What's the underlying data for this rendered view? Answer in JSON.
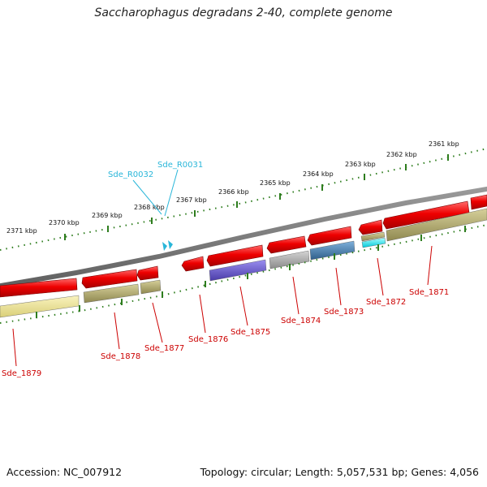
{
  "title": "Saccharophagus degradans 2-40, complete genome",
  "accession": "Accession: NC_007912",
  "summary": "Topology: circular; Length: 5,057,531 bp; Genes: 4,056",
  "scale_marks": [
    {
      "label": "2371 kbp"
    },
    {
      "label": "2370 kbp"
    },
    {
      "label": "2369 kbp"
    },
    {
      "label": "2368 kbp"
    },
    {
      "label": "2367 kbp"
    },
    {
      "label": "2366 kbp"
    },
    {
      "label": "2365 kbp"
    },
    {
      "label": "2364 kbp"
    },
    {
      "label": "2363 kbp"
    },
    {
      "label": "2362 kbp"
    },
    {
      "label": "2361 kbp"
    }
  ],
  "rna_genes": [
    "Sde_R0032",
    "Sde_R0031"
  ],
  "genes": [
    "Sde_1879",
    "Sde_1878",
    "Sde_1877",
    "Sde_1876",
    "Sde_1875",
    "Sde_1874",
    "Sde_1873",
    "Sde_1872",
    "Sde_1871"
  ],
  "colors": {
    "backbone": "#777777",
    "gene_arrow": "#ee0000",
    "rna_marker": "#29b6d9",
    "tick": "#2e7d1e",
    "cog_olive": "#b5ad6e",
    "cog_yellow": "#f0e68c",
    "cog_purple": "#6a5acd",
    "cog_gray": "#a9a9a9",
    "cog_steel": "#4682b4",
    "cog_cyan": "#00ffff",
    "label_red": "#cc0000",
    "label_cyan": "#29b6d9"
  }
}
